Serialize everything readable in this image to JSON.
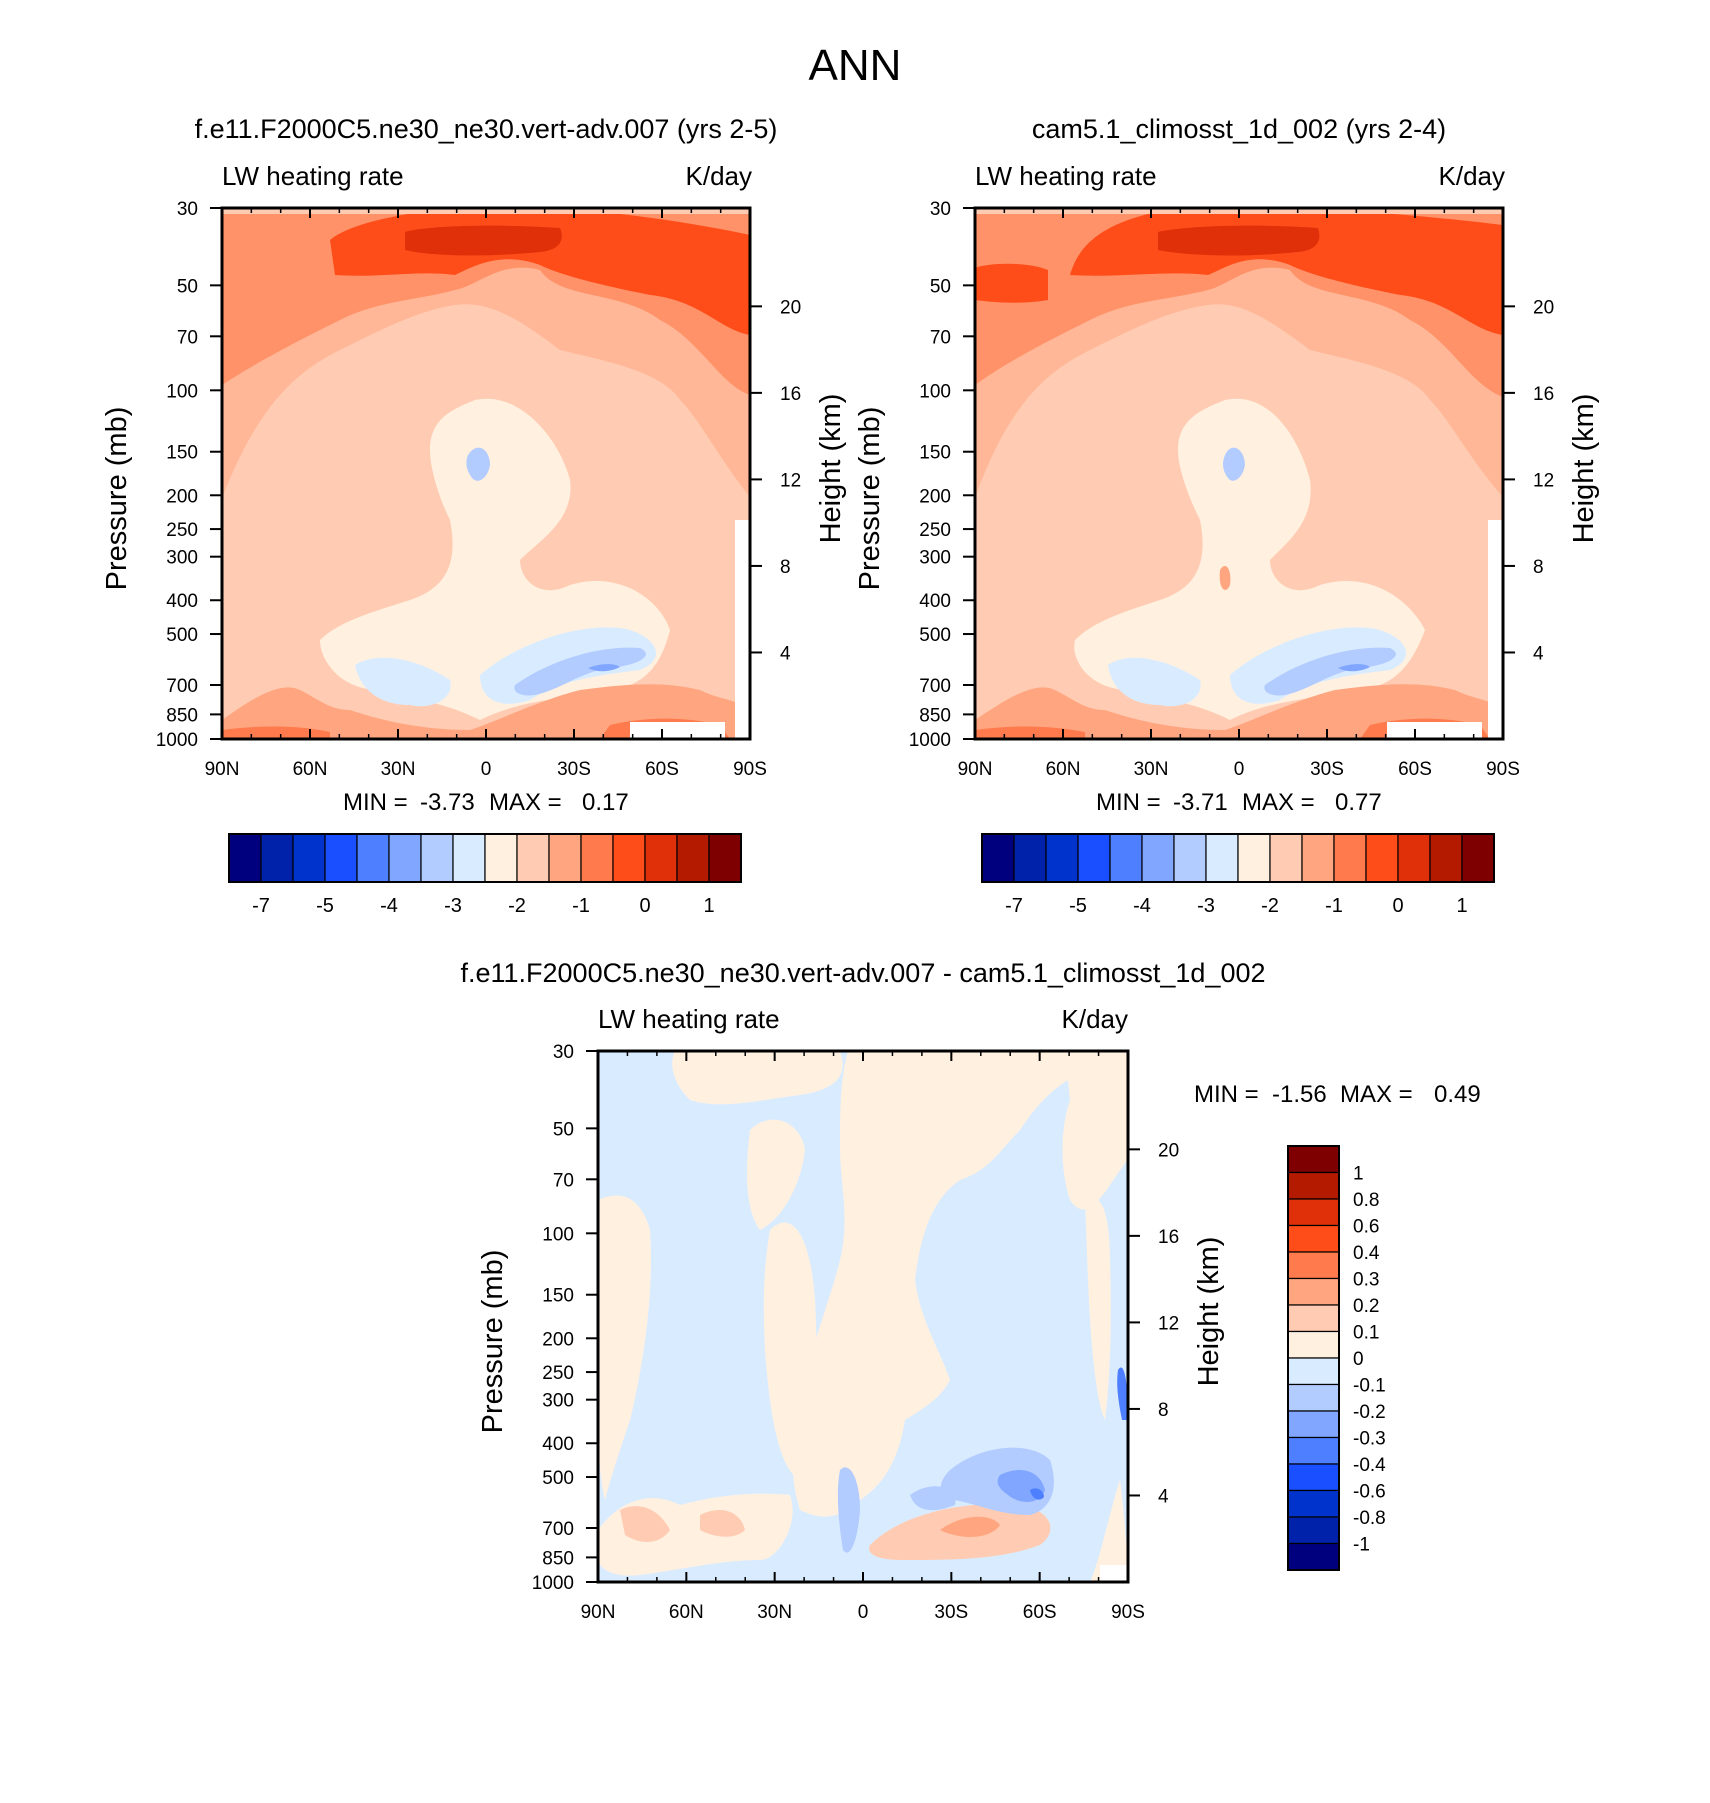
{
  "figure_title": "ANN",
  "colors": {
    "main_scale": [
      "#00007f",
      "#0022aa",
      "#0033cc",
      "#1a4fff",
      "#4d7fff",
      "#80a6ff",
      "#b3ccff",
      "#d9ecff",
      "#fff0e0",
      "#ffccb3",
      "#ffa680",
      "#ff7a4d",
      "#ff4d1a",
      "#e0300a",
      "#b31a00",
      "#7f0000"
    ],
    "diff_scale": [
      "#00007f",
      "#0022aa",
      "#0033cc",
      "#1a4fff",
      "#4d7fff",
      "#80a6ff",
      "#b3ccff",
      "#d9ecff",
      "#fff0e0",
      "#ffccb3",
      "#ffa680",
      "#ff7a4d",
      "#ff4d1a",
      "#e0300a",
      "#b31a00",
      "#7f0000"
    ]
  },
  "chart_data": [
    {
      "type": "heatmap",
      "panel": "top-left",
      "title": "f.e11.F2000C5.ne30_ne30.vert-adv.007 (yrs 2-5)",
      "left_label": "LW heating rate",
      "right_label": "K/day",
      "ylabel": "Pressure (mb)",
      "y2label": "Height (km)",
      "x_ticks": [
        "90N",
        "60N",
        "30N",
        "0",
        "30S",
        "60S",
        "90S"
      ],
      "y_ticks": [
        "30",
        "50",
        "70",
        "100",
        "150",
        "200",
        "250",
        "300",
        "400",
        "500",
        "700",
        "850",
        "1000"
      ],
      "y2_ticks": [
        "20",
        "16",
        "12",
        "8",
        "4"
      ],
      "min": "-3.73",
      "max": "0.17",
      "min_label": "MIN =",
      "max_label": "MAX =",
      "colorbar_labels": [
        "-7",
        "-5",
        "-4",
        "-3",
        "-2",
        "-1",
        "0",
        "1"
      ]
    },
    {
      "type": "heatmap",
      "panel": "top-right",
      "title": "cam5.1_climosst_1d_002 (yrs 2-4)",
      "left_label": "LW heating rate",
      "right_label": "K/day",
      "ylabel": "Pressure (mb)",
      "y2label": "Height (km)",
      "x_ticks": [
        "90N",
        "60N",
        "30N",
        "0",
        "30S",
        "60S",
        "90S"
      ],
      "y_ticks": [
        "30",
        "50",
        "70",
        "100",
        "150",
        "200",
        "250",
        "300",
        "400",
        "500",
        "700",
        "850",
        "1000"
      ],
      "y2_ticks": [
        "20",
        "16",
        "12",
        "8",
        "4"
      ],
      "min": "-3.71",
      "max": "0.77",
      "min_label": "MIN =",
      "max_label": "MAX =",
      "colorbar_labels": [
        "-7",
        "-5",
        "-4",
        "-3",
        "-2",
        "-1",
        "0",
        "1"
      ]
    },
    {
      "type": "heatmap",
      "panel": "bottom-difference",
      "title": "f.e11.F2000C5.ne30_ne30.vert-adv.007 - cam5.1_climosst_1d_002",
      "left_label": "LW heating rate",
      "right_label": "K/day",
      "ylabel": "Pressure (mb)",
      "y2label": "Height (km)",
      "x_ticks": [
        "90N",
        "60N",
        "30N",
        "0",
        "30S",
        "60S",
        "90S"
      ],
      "y_ticks": [
        "30",
        "50",
        "70",
        "100",
        "150",
        "200",
        "250",
        "300",
        "400",
        "500",
        "700",
        "850",
        "1000"
      ],
      "y2_ticks": [
        "20",
        "16",
        "12",
        "8",
        "4"
      ],
      "min": "-1.56",
      "max": "0.49",
      "min_label": "MIN =",
      "max_label": "MAX =",
      "colorbar_labels": [
        "1",
        "0.8",
        "0.6",
        "0.4",
        "0.3",
        "0.2",
        "0.1",
        "0",
        "-0.1",
        "-0.2",
        "-0.3",
        "-0.4",
        "-0.6",
        "-0.8",
        "-1"
      ]
    }
  ]
}
